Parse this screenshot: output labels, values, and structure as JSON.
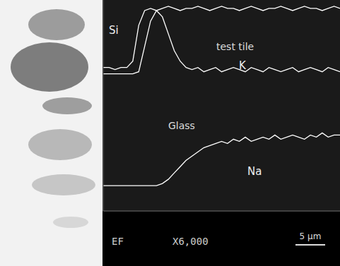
{
  "chart_data": {
    "type": "line",
    "x": [
      0,
      1,
      2,
      3,
      4,
      5,
      6,
      7,
      8,
      9,
      10,
      11,
      12,
      13,
      14,
      15,
      16,
      17,
      18,
      19,
      20,
      21,
      22,
      23,
      24,
      25,
      26,
      27,
      28,
      29,
      30,
      31,
      32,
      33,
      34,
      35,
      36,
      37,
      38,
      39,
      40
    ],
    "series": [
      {
        "name": "Si",
        "color": "#ffffff",
        "values": [
          68,
          68,
          67,
          68,
          68,
          71,
          88,
          95,
          96,
          95,
          96,
          97,
          96,
          95,
          96,
          96,
          97,
          96,
          95,
          96,
          97,
          96,
          96,
          95,
          96,
          97,
          96,
          95,
          96,
          96,
          97,
          96,
          95,
          96,
          97,
          96,
          96,
          95,
          96,
          97,
          96
        ]
      },
      {
        "name": "K",
        "color": "#ffffff",
        "values": [
          65,
          65,
          65,
          65,
          65,
          65,
          66,
          78,
          90,
          95,
          92,
          84,
          76,
          71,
          68,
          67,
          68,
          66,
          67,
          68,
          66,
          67,
          68,
          67,
          66,
          68,
          67,
          66,
          68,
          67,
          66,
          67,
          68,
          66,
          67,
          68,
          67,
          66,
          68,
          67,
          66
        ]
      },
      {
        "name": "Na",
        "color": "#ffffff",
        "values": [
          12,
          12,
          12,
          12,
          12,
          12,
          12,
          12,
          12,
          12,
          13,
          15,
          18,
          21,
          24,
          26,
          28,
          30,
          31,
          32,
          33,
          32,
          34,
          33,
          35,
          33,
          34,
          35,
          34,
          36,
          34,
          35,
          36,
          35,
          34,
          36,
          35,
          37,
          35,
          36,
          36
        ]
      }
    ],
    "xlim": [
      0,
      40
    ],
    "ylim": [
      0,
      100
    ],
    "xticks": [],
    "yticks": [],
    "tick_labels": false,
    "grid": false,
    "annotations": [
      "test tile",
      "Glass"
    ],
    "footer": [
      "EF",
      "X6,000"
    ],
    "scale_bar": {
      "label": "5 μm",
      "value": 5
    }
  }
}
